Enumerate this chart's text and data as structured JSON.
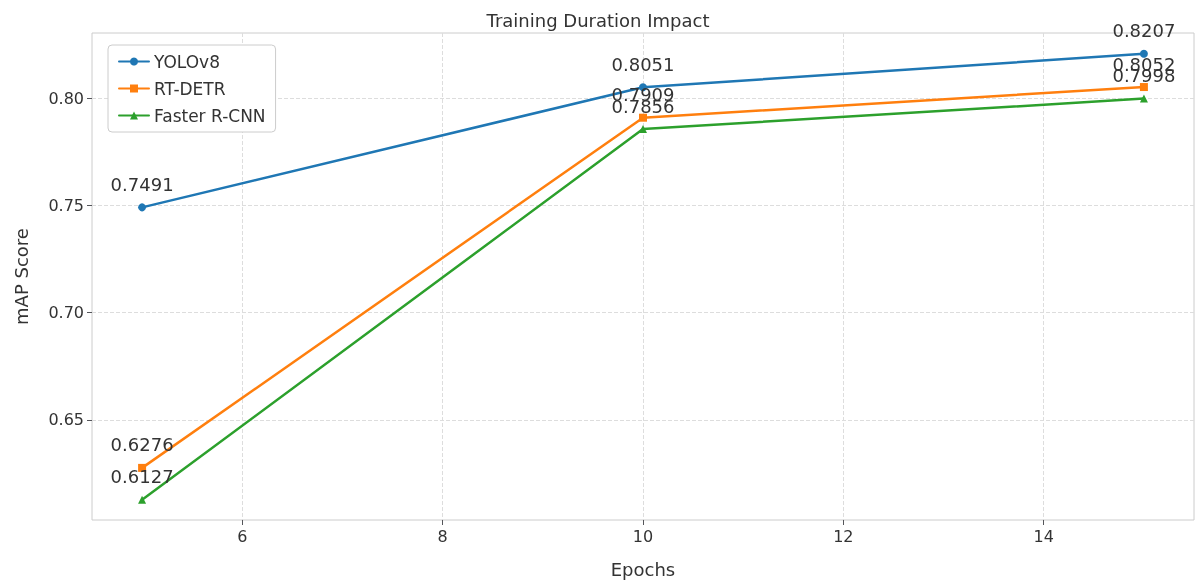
{
  "chart_data": {
    "type": "line",
    "title": "Training Duration Impact",
    "xlabel": "Epochs",
    "ylabel": "mAP Score",
    "x": [
      5,
      10,
      15
    ],
    "series": [
      {
        "name": "YOLOv8",
        "color": "#1f77b4",
        "marker": "circle",
        "values": [
          0.7491,
          0.8051,
          0.8207
        ]
      },
      {
        "name": "RT-DETR",
        "color": "#ff7f0e",
        "marker": "square",
        "values": [
          0.6276,
          0.7909,
          0.8052
        ]
      },
      {
        "name": "Faster R-CNN",
        "color": "#2ca02c",
        "marker": "triangle",
        "values": [
          0.6127,
          0.7856,
          0.7998
        ]
      }
    ],
    "xlim": [
      4.5,
      15.5
    ],
    "xticks": [
      6,
      8,
      10,
      12,
      14
    ],
    "ylim": [
      0.6033,
      0.8304
    ],
    "yticks": [
      0.65,
      {
        "value": 0.7,
        "label": "0.70"
      },
      0.75,
      {
        "value": 0.8,
        "label": "0.80"
      }
    ],
    "grid": true,
    "legend": "top left",
    "data_labels": true,
    "line_style": "solid"
  }
}
